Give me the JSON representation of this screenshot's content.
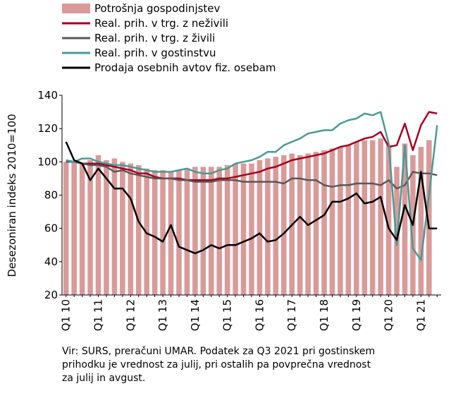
{
  "chart_data": {
    "type": "bar-line",
    "y_label": "Desezoniran indeks 2010=100",
    "categories": [
      "Q1 10",
      null,
      null,
      null,
      "Q1 11",
      null,
      null,
      null,
      "Q1 12",
      null,
      null,
      null,
      "Q1 13",
      null,
      null,
      null,
      "Q1 14",
      null,
      null,
      null,
      "Q1 15",
      null,
      null,
      null,
      "Q1 16",
      null,
      null,
      null,
      "Q1 17",
      null,
      null,
      null,
      "Q1 18",
      null,
      null,
      null,
      "Q1 19",
      null,
      null,
      null,
      "Q1 20",
      null,
      null,
      null,
      "Q1 21",
      null,
      null
    ],
    "ylim": [
      20,
      140
    ],
    "yticks": [
      20,
      40,
      60,
      80,
      100,
      120,
      140
    ],
    "series": [
      {
        "name": "Potrošnja gospodinjstev",
        "type": "bar",
        "color": "#d99a99",
        "values": [
          100,
          100,
          99,
          101,
          104,
          101,
          102,
          100,
          99,
          98,
          96,
          95,
          95,
          94,
          95,
          96,
          97,
          97,
          97,
          97,
          98,
          99,
          99,
          99,
          101,
          102,
          103,
          104,
          105,
          104,
          105,
          106,
          107,
          108,
          109,
          110,
          112,
          113,
          113,
          114,
          110,
          97,
          111,
          104,
          109,
          113,
          null
        ]
      },
      {
        "name": "Real. prih. v trg. z neživili",
        "type": "line",
        "color": "#a50021",
        "values": [
          100,
          100,
          99,
          99,
          99,
          98,
          97,
          96,
          95,
          93,
          93,
          91,
          90,
          90,
          90,
          89,
          89,
          89,
          89,
          90,
          90,
          91,
          92,
          93,
          94,
          96,
          97,
          99,
          101,
          102,
          103,
          104,
          105,
          107,
          109,
          110,
          112,
          114,
          115,
          118,
          109,
          110,
          123,
          107,
          122,
          130,
          129
        ]
      },
      {
        "name": "Real. prih. v trg. z živili",
        "type": "line",
        "color": "#595959",
        "values": [
          100,
          100,
          99,
          98,
          98,
          97,
          94,
          95,
          93,
          92,
          91,
          90,
          90,
          90,
          89,
          89,
          88,
          88,
          88,
          89,
          89,
          89,
          88,
          88,
          88,
          88,
          88,
          87,
          90,
          90,
          89,
          89,
          86,
          85,
          86,
          86,
          87,
          87,
          87,
          86,
          89,
          84,
          86,
          94,
          93,
          93,
          92
        ]
      },
      {
        "name": "Real. prih. v gostinstvu",
        "type": "line",
        "color": "#4a9a96",
        "values": [
          101,
          100,
          102,
          102,
          100,
          99,
          98,
          98,
          97,
          96,
          95,
          94,
          94,
          94,
          95,
          96,
          94,
          93,
          93,
          95,
          96,
          99,
          100,
          101,
          103,
          106,
          106,
          110,
          112,
          114,
          117,
          118,
          119,
          119,
          123,
          125,
          126,
          129,
          128,
          130,
          111,
          50,
          110,
          48,
          41,
          80,
          122
        ]
      },
      {
        "name": "Prodaja osebnih avtov fiz. osebam",
        "type": "line",
        "color": "#000000",
        "values": [
          112,
          101,
          99,
          89,
          96,
          90,
          84,
          84,
          78,
          64,
          57,
          55,
          52,
          62,
          49,
          47,
          45,
          47,
          50,
          48,
          50,
          50,
          52,
          54,
          57,
          52,
          53,
          57,
          62,
          67,
          62,
          65,
          68,
          76,
          76,
          78,
          81,
          75,
          76,
          79,
          60,
          53,
          74,
          62,
          94,
          60,
          60
        ]
      }
    ],
    "note": [
      "Vir: SURS, preračuni UMAR. Podatek za Q3 2021 pri gostinskem",
      "prihodku je vrednost za julij, pri ostalih pa povprečna vrednost",
      "za julij in avgust."
    ]
  }
}
